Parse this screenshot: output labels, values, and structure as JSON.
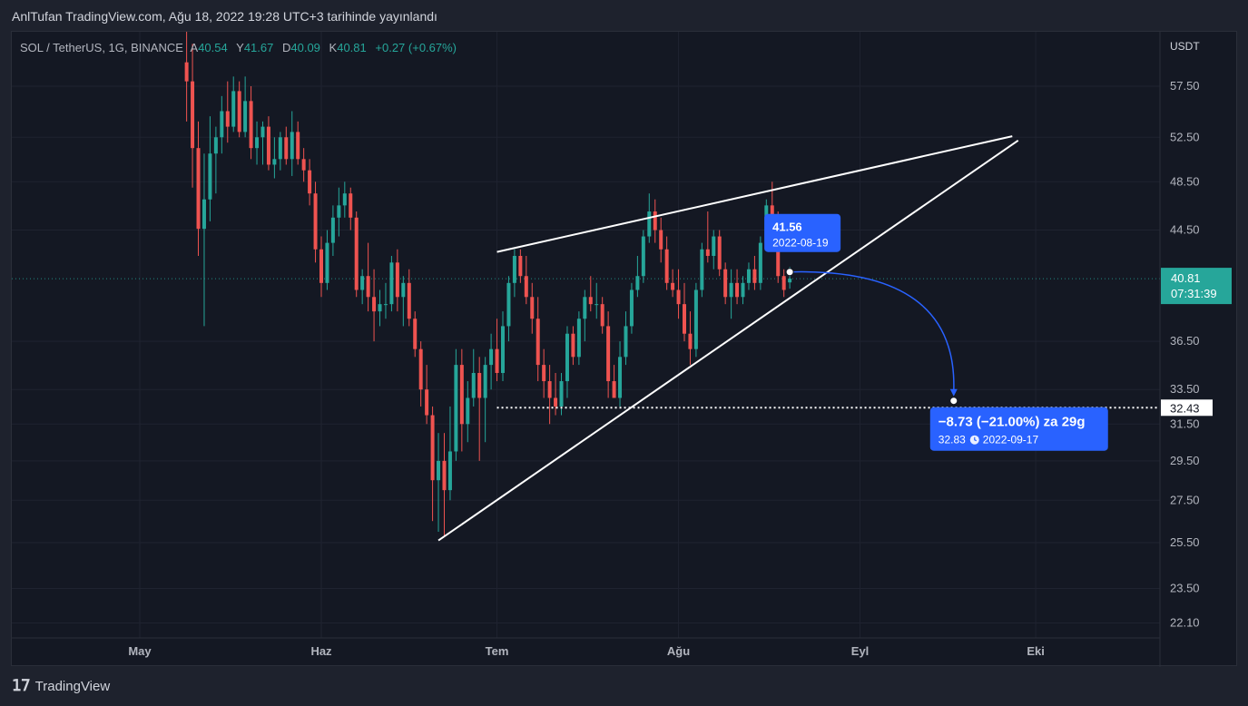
{
  "caption": "AnlTufan TradingView.com, Ağu 18, 2022 19:28 UTC+3 tarihinde yayınlandı",
  "header": {
    "symbol": "SOL / TetherUS, 1G, BINANCE",
    "open_key": "A",
    "open": "40.54",
    "high_key": "Y",
    "high": "41.67",
    "low_key": "D",
    "low": "40.09",
    "close_key": "K",
    "close": "40.81",
    "change": "+0.27 (+0.67%)"
  },
  "footer": {
    "brand": "TradingView"
  },
  "colors": {
    "up": "#26a69a",
    "down": "#ef5350",
    "background": "#141823",
    "accent": "#2962ff",
    "price_tag": "#26a69a",
    "grid": "#1f2330"
  },
  "chart_data": {
    "type": "candlestick",
    "currency_label": "USDT",
    "y_ticks": [
      57.5,
      52.5,
      48.5,
      44.5,
      36.5,
      33.5,
      31.5,
      29.5,
      27.5,
      25.5,
      23.5,
      22.1
    ],
    "x_ticks": [
      {
        "date": "2022-05-01",
        "label": "May"
      },
      {
        "date": "2022-06-01",
        "label": "Haz"
      },
      {
        "date": "2022-07-01",
        "label": "Tem"
      },
      {
        "date": "2022-08-01",
        "label": "Ağu"
      },
      {
        "date": "2022-09-01",
        "label": "Eyl"
      },
      {
        "date": "2022-10-01",
        "label": "Eki"
      }
    ],
    "candles": [
      {
        "date": "2022-05-09",
        "o": 60.0,
        "h": 70.0,
        "l": 54.0,
        "c": 58.0
      },
      {
        "date": "2022-05-10",
        "o": 58.0,
        "h": 62.0,
        "l": 48.0,
        "c": 51.5
      },
      {
        "date": "2022-05-11",
        "o": 51.5,
        "h": 54.0,
        "l": 42.5,
        "c": 44.6
      },
      {
        "date": "2022-05-12",
        "o": 44.6,
        "h": 51.0,
        "l": 37.5,
        "c": 47.0
      },
      {
        "date": "2022-05-13",
        "o": 47.0,
        "h": 54.5,
        "l": 45.2,
        "c": 51.0
      },
      {
        "date": "2022-05-14",
        "o": 51.0,
        "h": 53.5,
        "l": 47.5,
        "c": 52.5
      },
      {
        "date": "2022-05-15",
        "o": 52.5,
        "h": 56.5,
        "l": 51.0,
        "c": 55.0
      },
      {
        "date": "2022-05-16",
        "o": 55.0,
        "h": 58.0,
        "l": 52.0,
        "c": 53.5
      },
      {
        "date": "2022-05-17",
        "o": 53.5,
        "h": 58.5,
        "l": 53.0,
        "c": 57.0
      },
      {
        "date": "2022-05-18",
        "o": 57.0,
        "h": 58.0,
        "l": 52.5,
        "c": 53.0
      },
      {
        "date": "2022-05-19",
        "o": 53.0,
        "h": 58.5,
        "l": 52.5,
        "c": 56.0
      },
      {
        "date": "2022-05-20",
        "o": 56.0,
        "h": 57.5,
        "l": 50.5,
        "c": 51.5
      },
      {
        "date": "2022-05-21",
        "o": 51.5,
        "h": 54.0,
        "l": 50.0,
        "c": 52.5
      },
      {
        "date": "2022-05-22",
        "o": 52.5,
        "h": 54.0,
        "l": 50.0,
        "c": 53.5
      },
      {
        "date": "2022-05-23",
        "o": 53.5,
        "h": 54.5,
        "l": 49.5,
        "c": 50.0
      },
      {
        "date": "2022-05-24",
        "o": 50.0,
        "h": 52.5,
        "l": 48.8,
        "c": 50.5
      },
      {
        "date": "2022-05-25",
        "o": 50.5,
        "h": 53.0,
        "l": 49.5,
        "c": 52.5
      },
      {
        "date": "2022-05-26",
        "o": 52.5,
        "h": 53.5,
        "l": 50.0,
        "c": 50.5
      },
      {
        "date": "2022-05-27",
        "o": 50.5,
        "h": 55.0,
        "l": 49.0,
        "c": 53.0
      },
      {
        "date": "2022-05-28",
        "o": 53.0,
        "h": 54.0,
        "l": 50.0,
        "c": 50.5
      },
      {
        "date": "2022-05-29",
        "o": 50.5,
        "h": 51.5,
        "l": 48.5,
        "c": 49.5
      },
      {
        "date": "2022-05-30",
        "o": 49.5,
        "h": 50.5,
        "l": 46.5,
        "c": 47.5
      },
      {
        "date": "2022-05-31",
        "o": 47.5,
        "h": 48.5,
        "l": 42.0,
        "c": 43.0
      },
      {
        "date": "2022-06-01",
        "o": 43.0,
        "h": 44.0,
        "l": 39.5,
        "c": 40.5
      },
      {
        "date": "2022-06-02",
        "o": 40.5,
        "h": 44.5,
        "l": 40.0,
        "c": 43.5
      },
      {
        "date": "2022-06-03",
        "o": 43.5,
        "h": 46.5,
        "l": 42.5,
        "c": 45.5
      },
      {
        "date": "2022-06-04",
        "o": 45.5,
        "h": 48.0,
        "l": 44.0,
        "c": 46.5
      },
      {
        "date": "2022-06-05",
        "o": 46.5,
        "h": 48.5,
        "l": 45.5,
        "c": 47.5
      },
      {
        "date": "2022-06-06",
        "o": 47.5,
        "h": 48.0,
        "l": 44.5,
        "c": 45.5
      },
      {
        "date": "2022-06-07",
        "o": 45.5,
        "h": 46.0,
        "l": 39.5,
        "c": 40.0
      },
      {
        "date": "2022-06-08",
        "o": 40.0,
        "h": 41.5,
        "l": 39.0,
        "c": 41.0
      },
      {
        "date": "2022-06-09",
        "o": 41.0,
        "h": 43.5,
        "l": 38.5,
        "c": 39.5
      },
      {
        "date": "2022-06-10",
        "o": 39.5,
        "h": 41.5,
        "l": 36.5,
        "c": 38.5
      },
      {
        "date": "2022-06-11",
        "o": 38.5,
        "h": 40.0,
        "l": 37.5,
        "c": 39.0
      },
      {
        "date": "2022-06-12",
        "o": 39.0,
        "h": 40.5,
        "l": 38.0,
        "c": 39.0
      },
      {
        "date": "2022-06-13",
        "o": 39.0,
        "h": 42.5,
        "l": 38.5,
        "c": 42.0
      },
      {
        "date": "2022-06-14",
        "o": 42.0,
        "h": 43.0,
        "l": 38.5,
        "c": 39.5
      },
      {
        "date": "2022-06-15",
        "o": 39.5,
        "h": 41.0,
        "l": 37.5,
        "c": 40.5
      },
      {
        "date": "2022-06-16",
        "o": 40.5,
        "h": 41.5,
        "l": 37.5,
        "c": 38.0
      },
      {
        "date": "2022-06-17",
        "o": 38.0,
        "h": 38.5,
        "l": 35.5,
        "c": 36.0
      },
      {
        "date": "2022-06-18",
        "o": 36.0,
        "h": 36.5,
        "l": 32.5,
        "c": 33.5
      },
      {
        "date": "2022-06-19",
        "o": 33.5,
        "h": 35.0,
        "l": 31.5,
        "c": 32.0
      },
      {
        "date": "2022-06-20",
        "o": 32.0,
        "h": 32.5,
        "l": 26.5,
        "c": 28.5
      },
      {
        "date": "2022-06-21",
        "o": 28.5,
        "h": 31.0,
        "l": 26.0,
        "c": 29.5
      },
      {
        "date": "2022-06-22",
        "o": 29.5,
        "h": 31.0,
        "l": 25.8,
        "c": 28.0
      },
      {
        "date": "2022-06-23",
        "o": 28.0,
        "h": 32.5,
        "l": 27.5,
        "c": 30.0
      },
      {
        "date": "2022-06-24",
        "o": 30.0,
        "h": 36.0,
        "l": 29.5,
        "c": 35.0
      },
      {
        "date": "2022-06-25",
        "o": 35.0,
        "h": 36.0,
        "l": 30.0,
        "c": 31.5
      },
      {
        "date": "2022-06-26",
        "o": 31.5,
        "h": 34.0,
        "l": 30.5,
        "c": 33.0
      },
      {
        "date": "2022-06-27",
        "o": 33.0,
        "h": 36.0,
        "l": 32.5,
        "c": 34.5
      },
      {
        "date": "2022-06-28",
        "o": 34.5,
        "h": 35.5,
        "l": 29.5,
        "c": 33.0
      },
      {
        "date": "2022-06-29",
        "o": 33.0,
        "h": 35.5,
        "l": 30.5,
        "c": 35.0
      },
      {
        "date": "2022-06-30",
        "o": 35.0,
        "h": 37.0,
        "l": 33.5,
        "c": 36.0
      },
      {
        "date": "2022-07-01",
        "o": 36.0,
        "h": 38.0,
        "l": 34.0,
        "c": 34.5
      },
      {
        "date": "2022-07-02",
        "o": 34.5,
        "h": 38.5,
        "l": 34.0,
        "c": 37.5
      },
      {
        "date": "2022-07-03",
        "o": 37.5,
        "h": 41.0,
        "l": 36.5,
        "c": 40.5
      },
      {
        "date": "2022-07-04",
        "o": 40.5,
        "h": 43.0,
        "l": 39.5,
        "c": 42.5
      },
      {
        "date": "2022-07-05",
        "o": 42.5,
        "h": 43.0,
        "l": 40.5,
        "c": 41.0
      },
      {
        "date": "2022-07-06",
        "o": 41.0,
        "h": 42.5,
        "l": 39.0,
        "c": 39.5
      },
      {
        "date": "2022-07-07",
        "o": 39.5,
        "h": 40.5,
        "l": 37.0,
        "c": 38.0
      },
      {
        "date": "2022-07-08",
        "o": 38.0,
        "h": 39.5,
        "l": 34.0,
        "c": 35.0
      },
      {
        "date": "2022-07-09",
        "o": 35.0,
        "h": 36.0,
        "l": 33.0,
        "c": 34.0
      },
      {
        "date": "2022-07-10",
        "o": 34.0,
        "h": 35.0,
        "l": 31.5,
        "c": 33.0
      },
      {
        "date": "2022-07-11",
        "o": 33.0,
        "h": 34.5,
        "l": 32.0,
        "c": 32.5
      },
      {
        "date": "2022-07-12",
        "o": 32.5,
        "h": 34.5,
        "l": 32.0,
        "c": 34.0
      },
      {
        "date": "2022-07-13",
        "o": 34.0,
        "h": 37.5,
        "l": 33.0,
        "c": 37.0
      },
      {
        "date": "2022-07-14",
        "o": 37.0,
        "h": 37.5,
        "l": 35.0,
        "c": 35.5
      },
      {
        "date": "2022-07-15",
        "o": 35.5,
        "h": 38.5,
        "l": 35.0,
        "c": 38.0
      },
      {
        "date": "2022-07-16",
        "o": 38.0,
        "h": 40.0,
        "l": 36.5,
        "c": 39.5
      },
      {
        "date": "2022-07-17",
        "o": 39.5,
        "h": 41.0,
        "l": 38.5,
        "c": 39.0
      },
      {
        "date": "2022-07-18",
        "o": 39.0,
        "h": 40.5,
        "l": 38.0,
        "c": 39.0
      },
      {
        "date": "2022-07-19",
        "o": 39.0,
        "h": 39.5,
        "l": 37.0,
        "c": 37.5
      },
      {
        "date": "2022-07-20",
        "o": 37.5,
        "h": 38.5,
        "l": 33.0,
        "c": 34.0
      },
      {
        "date": "2022-07-21",
        "o": 34.0,
        "h": 35.0,
        "l": 33.0,
        "c": 33.0
      },
      {
        "date": "2022-07-22",
        "o": 33.0,
        "h": 36.5,
        "l": 32.5,
        "c": 35.5
      },
      {
        "date": "2022-07-23",
        "o": 35.5,
        "h": 38.5,
        "l": 35.0,
        "c": 37.5
      },
      {
        "date": "2022-07-24",
        "o": 37.5,
        "h": 40.5,
        "l": 37.0,
        "c": 40.0
      },
      {
        "date": "2022-07-25",
        "o": 40.0,
        "h": 42.5,
        "l": 39.5,
        "c": 41.0
      },
      {
        "date": "2022-07-26",
        "o": 41.0,
        "h": 44.5,
        "l": 40.5,
        "c": 44.0
      },
      {
        "date": "2022-07-27",
        "o": 44.0,
        "h": 47.5,
        "l": 43.5,
        "c": 46.0
      },
      {
        "date": "2022-07-28",
        "o": 46.0,
        "h": 47.0,
        "l": 43.5,
        "c": 44.5
      },
      {
        "date": "2022-07-29",
        "o": 44.5,
        "h": 45.5,
        "l": 42.0,
        "c": 43.0
      },
      {
        "date": "2022-07-30",
        "o": 43.0,
        "h": 44.0,
        "l": 40.0,
        "c": 40.5
      },
      {
        "date": "2022-07-31",
        "o": 40.5,
        "h": 41.5,
        "l": 39.5,
        "c": 40.0
      },
      {
        "date": "2022-08-01",
        "o": 40.0,
        "h": 41.5,
        "l": 38.0,
        "c": 39.0
      },
      {
        "date": "2022-08-02",
        "o": 39.0,
        "h": 40.5,
        "l": 36.5,
        "c": 37.0
      },
      {
        "date": "2022-08-03",
        "o": 37.0,
        "h": 38.5,
        "l": 35.0,
        "c": 36.0
      },
      {
        "date": "2022-08-04",
        "o": 36.0,
        "h": 40.5,
        "l": 35.5,
        "c": 40.0
      },
      {
        "date": "2022-08-05",
        "o": 40.0,
        "h": 43.5,
        "l": 39.5,
        "c": 43.0
      },
      {
        "date": "2022-08-06",
        "o": 43.0,
        "h": 46.0,
        "l": 42.0,
        "c": 42.5
      },
      {
        "date": "2022-08-07",
        "o": 42.5,
        "h": 44.5,
        "l": 41.5,
        "c": 44.0
      },
      {
        "date": "2022-08-08",
        "o": 44.0,
        "h": 44.5,
        "l": 41.0,
        "c": 41.5
      },
      {
        "date": "2022-08-09",
        "o": 41.5,
        "h": 42.0,
        "l": 39.0,
        "c": 39.5
      },
      {
        "date": "2022-08-10",
        "o": 39.5,
        "h": 41.5,
        "l": 38.0,
        "c": 40.5
      },
      {
        "date": "2022-08-11",
        "o": 40.5,
        "h": 41.5,
        "l": 39.0,
        "c": 39.5
      },
      {
        "date": "2022-08-12",
        "o": 39.5,
        "h": 41.0,
        "l": 39.0,
        "c": 40.5
      },
      {
        "date": "2022-08-13",
        "o": 40.5,
        "h": 42.0,
        "l": 40.0,
        "c": 41.5
      },
      {
        "date": "2022-08-14",
        "o": 41.5,
        "h": 42.5,
        "l": 40.0,
        "c": 40.5
      },
      {
        "date": "2022-08-15",
        "o": 40.5,
        "h": 44.0,
        "l": 40.0,
        "c": 43.5
      },
      {
        "date": "2022-08-16",
        "o": 43.5,
        "h": 47.0,
        "l": 43.0,
        "c": 46.5
      },
      {
        "date": "2022-08-17",
        "o": 46.5,
        "h": 48.5,
        "l": 45.0,
        "c": 45.5
      },
      {
        "date": "2022-08-18",
        "o": 45.5,
        "h": 46.0,
        "l": 40.5,
        "c": 41.0
      },
      {
        "date": "2022-08-19",
        "o": 41.0,
        "h": 41.5,
        "l": 39.5,
        "c": 40.0
      },
      {
        "date": "2022-08-20",
        "o": 40.54,
        "h": 41.67,
        "l": 40.09,
        "c": 40.81
      }
    ],
    "trendlines": [
      {
        "from": {
          "date": "2022-06-21",
          "price": 25.6
        },
        "to": {
          "date": "2022-09-28",
          "price": 52.2
        }
      },
      {
        "from": {
          "date": "2022-07-01",
          "price": 42.8
        },
        "to": {
          "date": "2022-09-27",
          "price": 52.6
        }
      }
    ],
    "target_level": 32.43,
    "target_level_start": "2022-07-01",
    "last_price": "40.81",
    "countdown": "07:31:39",
    "marker_point": {
      "date": "2022-08-20",
      "price": 41.3
    },
    "arc_end": {
      "date": "2022-09-17",
      "price": 32.83
    },
    "callout_top": {
      "price": "41.56",
      "date": "2022-08-19"
    },
    "callout_bottom": {
      "line1": "−8.73 (−21.00%) za 29g",
      "price": "32.83",
      "date": "2022-09-17"
    }
  }
}
